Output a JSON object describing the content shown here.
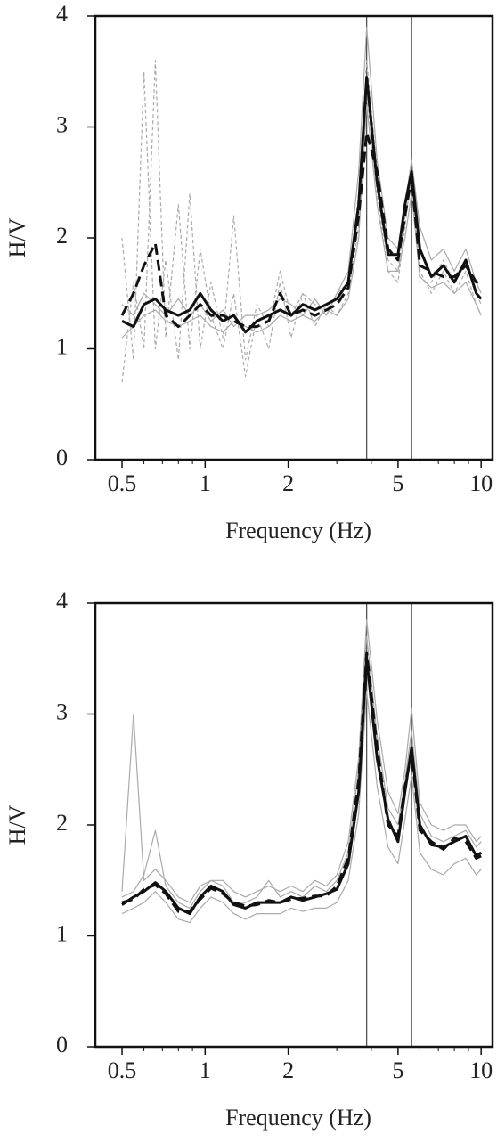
{
  "chart_data": [
    {
      "type": "line",
      "xscale": "log",
      "xlabel": "Frequency (Hz)",
      "ylabel": "H/V",
      "xlim": [
        0.4,
        11
      ],
      "ylim": [
        0,
        4
      ],
      "xticks": [
        0.5,
        1,
        2,
        5,
        10
      ],
      "yticks": [
        0,
        1,
        2,
        3,
        4
      ],
      "minor_xticks": [
        0.6,
        0.7,
        0.8,
        0.9,
        3,
        4,
        6,
        7,
        8,
        9
      ],
      "vlines": [
        3.85,
        5.6
      ],
      "x": [
        0.5,
        0.55,
        0.6,
        0.66,
        0.72,
        0.8,
        0.88,
        0.96,
        1.05,
        1.16,
        1.27,
        1.4,
        1.54,
        1.7,
        1.87,
        2.05,
        2.26,
        2.5,
        2.75,
        3.0,
        3.3,
        3.6,
        3.85,
        4.2,
        4.6,
        5.0,
        5.3,
        5.6,
        6.0,
        6.6,
        7.3,
        8.0,
        8.8,
        9.6,
        10
      ],
      "series": [
        {
          "color": "#aaaaaa",
          "style": "dashed",
          "values": [
            2.0,
            0.9,
            3.5,
            1.0,
            1.8,
            0.9,
            2.4,
            1.0,
            1.6,
            1.1,
            2.2,
            0.9,
            1.4,
            1.2,
            1.7,
            1.3,
            1.5,
            1.4,
            1.3,
            1.5,
            1.6,
            2.4,
            3.6,
            2.6,
            1.8,
            1.7,
            2.2,
            2.5,
            1.7,
            1.5,
            1.7,
            1.5,
            1.7,
            1.4,
            1.3
          ]
        },
        {
          "color": "#aaaaaa",
          "style": "dashed",
          "values": [
            0.7,
            1.6,
            1.0,
            3.6,
            1.1,
            2.3,
            1.0,
            1.9,
            1.3,
            1.0,
            1.5,
            0.75,
            1.3,
            1.0,
            1.6,
            1.1,
            1.5,
            1.2,
            1.4,
            1.3,
            1.5,
            2.1,
            3.3,
            2.4,
            1.7,
            1.6,
            2.1,
            2.6,
            1.6,
            1.6,
            1.8,
            1.6,
            1.8,
            1.5,
            1.4
          ]
        },
        {
          "color": "#aaaaaa",
          "style": "solid",
          "values": [
            1.4,
            1.3,
            1.5,
            1.4,
            1.3,
            1.45,
            1.3,
            1.4,
            1.25,
            1.35,
            1.2,
            1.3,
            1.3,
            1.35,
            1.45,
            1.4,
            1.3,
            1.45,
            1.3,
            1.5,
            1.7,
            2.6,
            3.9,
            2.7,
            2.0,
            1.9,
            2.3,
            2.7,
            2.1,
            1.8,
            1.9,
            1.7,
            1.9,
            1.6,
            1.5
          ]
        },
        {
          "color": "#aaaaaa",
          "style": "solid",
          "values": [
            1.1,
            1.2,
            1.3,
            1.35,
            1.25,
            1.2,
            1.25,
            1.3,
            1.2,
            1.15,
            1.25,
            1.2,
            1.15,
            1.2,
            1.3,
            1.25,
            1.3,
            1.25,
            1.35,
            1.3,
            1.45,
            2.0,
            3.2,
            2.3,
            1.7,
            1.7,
            2.0,
            2.4,
            1.65,
            1.55,
            1.6,
            1.5,
            1.6,
            1.4,
            1.3
          ]
        },
        {
          "color": "#111111",
          "style": "dashed",
          "values": [
            1.3,
            1.5,
            1.75,
            1.95,
            1.3,
            1.2,
            1.3,
            1.4,
            1.3,
            1.3,
            1.25,
            1.2,
            1.2,
            1.25,
            1.5,
            1.3,
            1.35,
            1.3,
            1.35,
            1.4,
            1.55,
            2.2,
            2.95,
            2.6,
            1.9,
            1.8,
            2.2,
            2.55,
            1.75,
            1.7,
            1.65,
            1.65,
            1.75,
            1.6,
            1.6
          ]
        },
        {
          "color": "#111111",
          "style": "solid",
          "values": [
            1.25,
            1.2,
            1.4,
            1.45,
            1.35,
            1.3,
            1.35,
            1.5,
            1.35,
            1.25,
            1.3,
            1.15,
            1.25,
            1.3,
            1.35,
            1.3,
            1.4,
            1.35,
            1.4,
            1.45,
            1.6,
            2.3,
            3.45,
            2.5,
            1.85,
            1.85,
            2.3,
            2.6,
            1.9,
            1.65,
            1.75,
            1.6,
            1.8,
            1.5,
            1.45
          ]
        }
      ]
    },
    {
      "type": "line",
      "xscale": "log",
      "xlabel": "Frequency (Hz)",
      "ylabel": "H/V",
      "xlim": [
        0.4,
        11
      ],
      "ylim": [
        0,
        4
      ],
      "xticks": [
        0.5,
        1,
        2,
        5,
        10
      ],
      "yticks": [
        0,
        1,
        2,
        3,
        4
      ],
      "minor_xticks": [
        0.6,
        0.7,
        0.8,
        0.9,
        3,
        4,
        6,
        7,
        8,
        9
      ],
      "vlines": [
        3.85,
        5.6
      ],
      "x": [
        0.5,
        0.55,
        0.6,
        0.66,
        0.72,
        0.8,
        0.88,
        0.96,
        1.05,
        1.16,
        1.27,
        1.4,
        1.54,
        1.7,
        1.87,
        2.05,
        2.26,
        2.5,
        2.75,
        3.0,
        3.3,
        3.6,
        3.85,
        4.2,
        4.6,
        5.0,
        5.3,
        5.6,
        6.0,
        6.6,
        7.3,
        8.0,
        8.8,
        9.6,
        10
      ],
      "series": [
        {
          "color": "#aaaaaa",
          "style": "solid",
          "values": [
            1.4,
            3.0,
            1.5,
            1.6,
            1.5,
            1.35,
            1.3,
            1.45,
            1.5,
            1.5,
            1.4,
            1.35,
            1.4,
            1.45,
            1.4,
            1.45,
            1.4,
            1.5,
            1.45,
            1.55,
            1.85,
            2.6,
            3.85,
            2.95,
            2.3,
            2.1,
            2.5,
            3.05,
            2.2,
            2.0,
            1.95,
            2.0,
            2.0,
            1.85,
            1.9
          ]
        },
        {
          "color": "#aaaaaa",
          "style": "solid",
          "values": [
            1.2,
            1.25,
            1.3,
            1.4,
            1.3,
            1.15,
            1.12,
            1.25,
            1.35,
            1.3,
            1.2,
            1.15,
            1.2,
            1.2,
            1.2,
            1.25,
            1.22,
            1.25,
            1.25,
            1.3,
            1.5,
            2.1,
            3.2,
            2.35,
            1.8,
            1.65,
            2.05,
            2.45,
            1.75,
            1.6,
            1.55,
            1.65,
            1.7,
            1.55,
            1.6
          ]
        },
        {
          "color": "#aaaaaa",
          "style": "solid",
          "values": [
            1.35,
            1.4,
            1.55,
            1.95,
            1.45,
            1.3,
            1.25,
            1.4,
            1.5,
            1.45,
            1.3,
            1.3,
            1.35,
            1.5,
            1.35,
            1.4,
            1.35,
            1.45,
            1.4,
            1.5,
            1.75,
            2.5,
            3.7,
            2.8,
            2.15,
            2.0,
            2.4,
            2.85,
            2.1,
            1.9,
            1.85,
            1.9,
            1.95,
            1.8,
            1.85
          ]
        },
        {
          "color": "#111111",
          "style": "dashed",
          "values": [
            1.3,
            1.33,
            1.42,
            1.46,
            1.38,
            1.22,
            1.22,
            1.33,
            1.43,
            1.38,
            1.3,
            1.27,
            1.28,
            1.32,
            1.3,
            1.33,
            1.34,
            1.36,
            1.36,
            1.45,
            1.7,
            2.4,
            3.55,
            2.7,
            2.0,
            1.9,
            2.35,
            2.65,
            1.95,
            1.85,
            1.78,
            1.88,
            1.85,
            1.7,
            1.72
          ]
        },
        {
          "color": "#111111",
          "style": "solid",
          "values": [
            1.28,
            1.35,
            1.4,
            1.48,
            1.4,
            1.25,
            1.2,
            1.35,
            1.45,
            1.4,
            1.28,
            1.25,
            1.3,
            1.3,
            1.3,
            1.35,
            1.32,
            1.35,
            1.38,
            1.42,
            1.65,
            2.3,
            3.5,
            2.6,
            2.05,
            1.85,
            2.3,
            2.7,
            2.0,
            1.82,
            1.8,
            1.85,
            1.9,
            1.72,
            1.75
          ]
        }
      ]
    }
  ]
}
